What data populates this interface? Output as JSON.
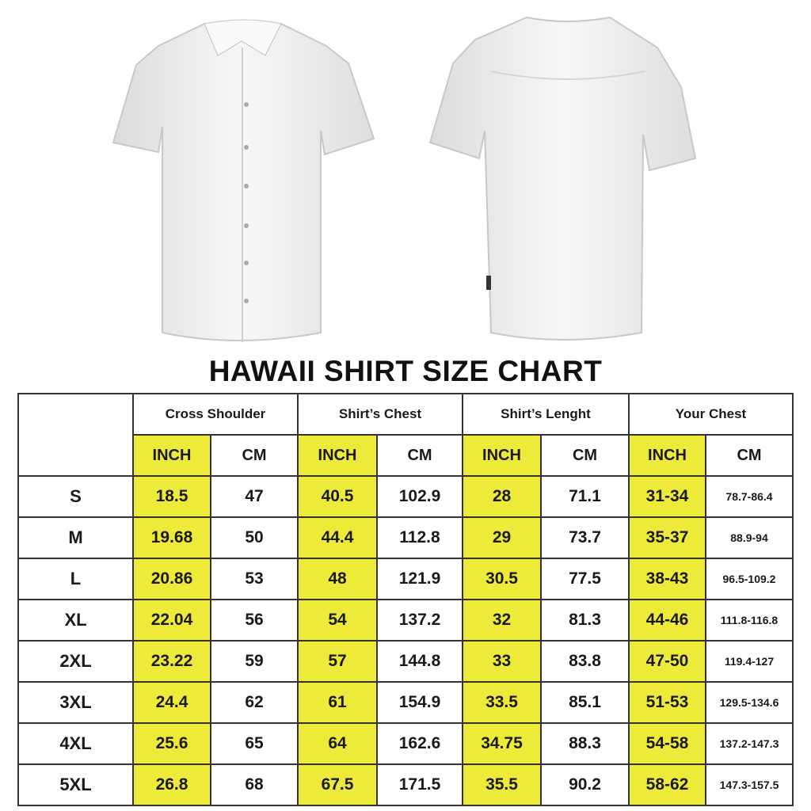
{
  "title": "HAWAII SHIRT SIZE CHART",
  "colors": {
    "highlight": "#eeea3a",
    "border": "#333333",
    "shirt": "#f2f2f2"
  },
  "images": {
    "front": "white-shirt-front",
    "back": "white-shirt-back"
  },
  "groups": [
    "Cross Shoulder",
    "Shirt’s Chest",
    "Shirt’s Lenght",
    "Your Chest"
  ],
  "units": [
    "INCH",
    "CM"
  ],
  "rows": [
    {
      "size": "S",
      "cells": [
        "18.5",
        "47",
        "40.5",
        "102.9",
        "28",
        "71.1",
        "31-34",
        "78.7-86.4"
      ]
    },
    {
      "size": "M",
      "cells": [
        "19.68",
        "50",
        "44.4",
        "112.8",
        "29",
        "73.7",
        "35-37",
        "88.9-94"
      ]
    },
    {
      "size": "L",
      "cells": [
        "20.86",
        "53",
        "48",
        "121.9",
        "30.5",
        "77.5",
        "38-43",
        "96.5-109.2"
      ]
    },
    {
      "size": "XL",
      "cells": [
        "22.04",
        "56",
        "54",
        "137.2",
        "32",
        "81.3",
        "44-46",
        "111.8-116.8"
      ]
    },
    {
      "size": "2XL",
      "cells": [
        "23.22",
        "59",
        "57",
        "144.8",
        "33",
        "83.8",
        "47-50",
        "119.4-127"
      ]
    },
    {
      "size": "3XL",
      "cells": [
        "24.4",
        "62",
        "61",
        "154.9",
        "33.5",
        "85.1",
        "51-53",
        "129.5-134.6"
      ]
    },
    {
      "size": "4XL",
      "cells": [
        "25.6",
        "65",
        "64",
        "162.6",
        "34.75",
        "88.3",
        "54-58",
        "137.2-147.3"
      ]
    },
    {
      "size": "5XL",
      "cells": [
        "26.8",
        "68",
        "67.5",
        "171.5",
        "35.5",
        "90.2",
        "58-62",
        "147.3-157.5"
      ]
    }
  ]
}
